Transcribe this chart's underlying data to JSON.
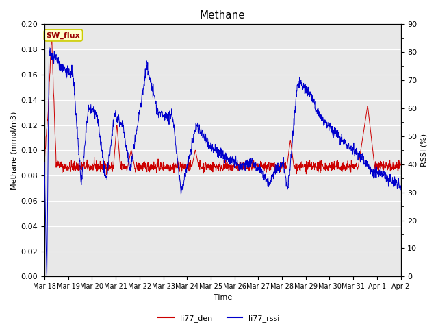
{
  "title": "Methane",
  "xlabel": "Time",
  "ylabel_left": "Methane (mmol/m3)",
  "ylabel_right": "RSSI (%)",
  "left_ylim": [
    0.0,
    0.2
  ],
  "right_ylim": [
    0,
    90
  ],
  "left_yticks": [
    0.0,
    0.02,
    0.04,
    0.06,
    0.08,
    0.1,
    0.12,
    0.14,
    0.16,
    0.18,
    0.2
  ],
  "right_yticks": [
    0,
    10,
    20,
    30,
    40,
    50,
    60,
    70,
    80,
    90
  ],
  "legend_labels": [
    "li77_den",
    "li77_rssi"
  ],
  "legend_colors": [
    "#cc0000",
    "#0000cc"
  ],
  "annotation_text": "SW_flux",
  "annotation_bg": "#ffffcc",
  "annotation_border": "#cccc00",
  "bg_color": "#e8e8e8",
  "line_color_red": "#cc0000",
  "line_color_blue": "#0000cc",
  "x_tick_labels": [
    "Mar 18",
    "Mar 19",
    "Mar 20",
    "Mar 21",
    "Mar 22",
    "Mar 23",
    "Mar 24",
    "Mar 25",
    "Mar 26",
    "Mar 27",
    "Mar 28",
    "Mar 29",
    "Mar 30",
    "Mar 31",
    "Apr 1",
    "Apr 2"
  ],
  "n_xticks": 16,
  "figsize": [
    6.4,
    4.8
  ],
  "dpi": 100
}
